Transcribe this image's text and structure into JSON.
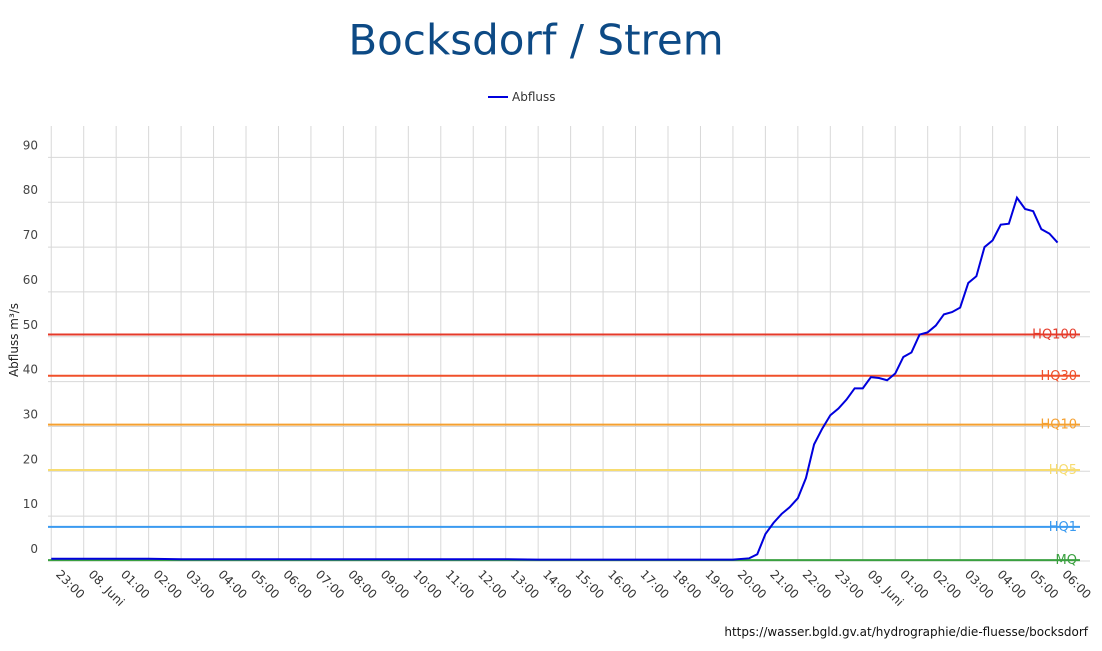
{
  "chart_data": {
    "type": "line",
    "title": "Bocksdorf / Strem",
    "y_label": "Abfluss m³/s",
    "source": "https://wasser.bgld.gv.at/hydrographie/die-fluesse/bocksdorf",
    "xlim": [
      -0.1,
      32
    ],
    "ylim": [
      0,
      97
    ],
    "grid": true,
    "legend": "top",
    "yticks": [
      0,
      10,
      20,
      30,
      40,
      50,
      60,
      70,
      80,
      90
    ],
    "xticks": [
      {
        "value": 0,
        "label": "23:00"
      },
      {
        "value": 1,
        "label": "08. Juni"
      },
      {
        "value": 2,
        "label": "01:00"
      },
      {
        "value": 3,
        "label": "02:00"
      },
      {
        "value": 4,
        "label": "03:00"
      },
      {
        "value": 5,
        "label": "04:00"
      },
      {
        "value": 6,
        "label": "05:00"
      },
      {
        "value": 7,
        "label": "06:00"
      },
      {
        "value": 8,
        "label": "07:00"
      },
      {
        "value": 9,
        "label": "08:00"
      },
      {
        "value": 10,
        "label": "09:00"
      },
      {
        "value": 11,
        "label": "10:00"
      },
      {
        "value": 12,
        "label": "11:00"
      },
      {
        "value": 13,
        "label": "12:00"
      },
      {
        "value": 14,
        "label": "13:00"
      },
      {
        "value": 15,
        "label": "14:00"
      },
      {
        "value": 16,
        "label": "15:00"
      },
      {
        "value": 17,
        "label": "16:00"
      },
      {
        "value": 18,
        "label": "17:00"
      },
      {
        "value": 19,
        "label": "18:00"
      },
      {
        "value": 20,
        "label": "19:00"
      },
      {
        "value": 21,
        "label": "20:00"
      },
      {
        "value": 22,
        "label": "21:00"
      },
      {
        "value": 23,
        "label": "22:00"
      },
      {
        "value": 24,
        "label": "23:00"
      },
      {
        "value": 25,
        "label": "09. Juni"
      },
      {
        "value": 26,
        "label": "01:00"
      },
      {
        "value": 27,
        "label": "02:00"
      },
      {
        "value": 28,
        "label": "03:00"
      },
      {
        "value": 29,
        "label": "04:00"
      },
      {
        "value": 30,
        "label": "05:00"
      },
      {
        "value": 31,
        "label": "06:00"
      }
    ],
    "x": [
      0,
      1,
      2,
      3,
      4,
      5,
      6,
      7,
      8,
      9,
      10,
      11,
      12,
      13,
      14,
      15,
      16,
      17,
      18,
      19,
      20,
      21,
      21.5,
      21.75,
      22,
      22.25,
      22.5,
      22.75,
      23,
      23.25,
      23.5,
      23.75,
      24,
      24.25,
      24.5,
      24.75,
      25,
      25.25,
      25.5,
      25.75,
      26,
      26.25,
      26.5,
      26.75,
      27,
      27.25,
      27.5,
      27.75,
      28,
      28.25,
      28.5,
      28.75,
      29,
      29.25,
      29.5,
      29.75,
      30,
      30.25,
      30.5,
      30.75,
      31
    ],
    "series": [
      {
        "name": "Abfluss",
        "color": "#0000dd",
        "values": [
          0.5,
          0.5,
          0.5,
          0.5,
          0.4,
          0.4,
          0.4,
          0.4,
          0.4,
          0.4,
          0.4,
          0.4,
          0.4,
          0.4,
          0.4,
          0.3,
          0.3,
          0.3,
          0.3,
          0.3,
          0.3,
          0.3,
          0.6,
          1.5,
          6,
          8.5,
          10.5,
          12,
          14,
          18.5,
          26,
          29.5,
          32.5,
          34,
          36,
          38.5,
          38.5,
          41,
          40.8,
          40.3,
          41.8,
          45.5,
          46.5,
          50.5,
          51,
          52.5,
          55,
          55.5,
          56.5,
          62,
          63.5,
          70,
          71.5,
          75,
          75.2,
          81,
          78.5,
          78,
          74,
          73,
          71
        ]
      }
    ],
    "thresholds": [
      {
        "name": "HQ100",
        "value": 50.5,
        "color": "#e53a2a"
      },
      {
        "name": "HQ30",
        "value": 41.3,
        "color": "#f0502a"
      },
      {
        "name": "HQ10",
        "value": 30.4,
        "color": "#f5a030"
      },
      {
        "name": "HQ5",
        "value": 20.3,
        "color": "#f7dc70"
      },
      {
        "name": "HQ1",
        "value": 7.6,
        "color": "#3a9af0"
      },
      {
        "name": "MQ",
        "value": 0.2,
        "color": "#3aa040"
      }
    ]
  }
}
